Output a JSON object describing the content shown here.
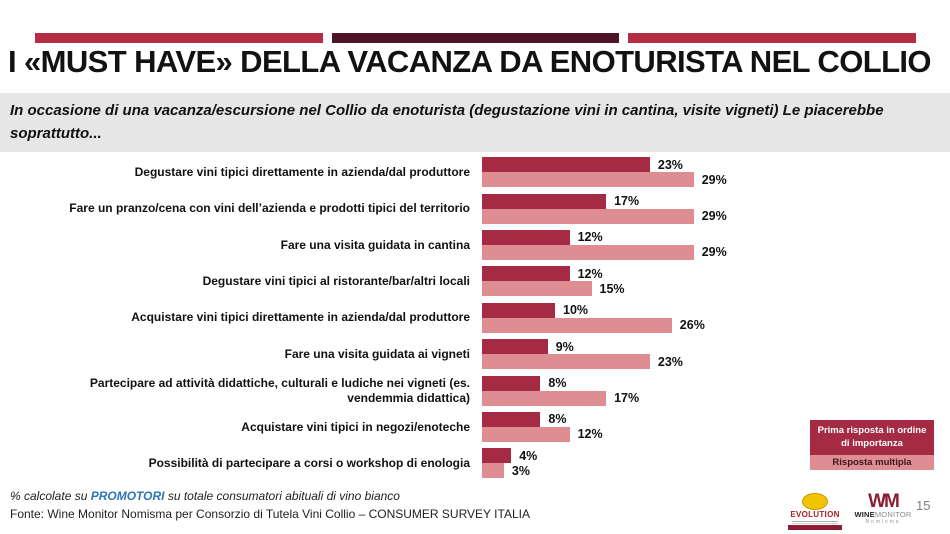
{
  "slide": {
    "title": "I «MUST HAVE» DELLA VACANZA DA ENOTURISTA NEL COLLIO",
    "subtitle": "In occasione di una vacanza/escursione nel Collio da enoturista (degustazione vini in cantina, visite vigneti) Le piacerebbe soprattutto...",
    "page_number": "15"
  },
  "chart_data": {
    "type": "bar",
    "orientation": "horizontal",
    "categories": [
      "Degustare vini tipici direttamente in azienda/dal produttore",
      "Fare un pranzo/cena con vini dell’azienda e prodotti tipici del territorio",
      "Fare una visita guidata in cantina",
      "Degustare vini tipici al ristorante/bar/altri locali",
      "Acquistare vini tipici direttamente in azienda/dal produttore",
      "Fare una visita guidata ai vigneti",
      "Partecipare ad attività didattiche, culturali e ludiche nei vigneti (es. vendemmia didattica)",
      "Acquistare vini tipici in negozi/enoteche",
      "Possibilità di partecipare a corsi o workshop di enologia"
    ],
    "series": [
      {
        "name": "Prima risposta in ordine di importanza",
        "color": "#A52A43",
        "values": [
          23,
          17,
          12,
          12,
          10,
          9,
          8,
          8,
          4
        ]
      },
      {
        "name": "Risposta multipla",
        "color": "#DE8E92",
        "values": [
          29,
          29,
          29,
          15,
          26,
          23,
          17,
          12,
          3
        ]
      }
    ],
    "value_suffix": "%",
    "xlim": [
      0,
      30
    ],
    "grid": false,
    "legend_position": "bottom-right",
    "data_labels": true
  },
  "footer": {
    "note_prefix": "% calcolate su ",
    "note_highlight": "PROMOTORI",
    "note_suffix": " su totale consumatori abituali di vino bianco",
    "source": "Fonte: Wine Monitor Nomisma per Consorzio di Tutela Vini Collio – CONSUMER SURVEY ITALIA"
  },
  "logos": {
    "evolution": "EVOLUTION",
    "winemonitor_mark": "WM",
    "winemonitor_bold": "WINE",
    "winemonitor_light": "MONITOR",
    "nomisma": "Nomisma"
  },
  "colors": {
    "accent_crimson": "#B52C45",
    "accent_maroon": "#4D1527",
    "bar_dark": "#A52A43",
    "bar_pink": "#DE8E92",
    "subtitle_band": "#E6E6E6",
    "note_highlight_blue": "#2E75B6"
  }
}
